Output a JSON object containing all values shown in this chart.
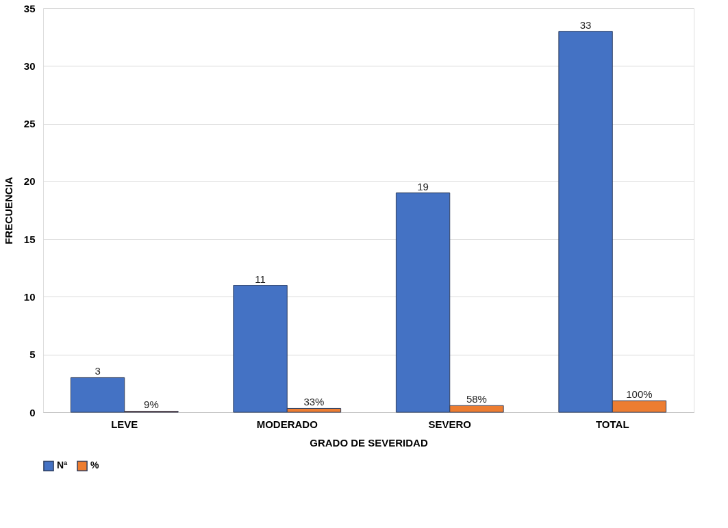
{
  "chart_data": {
    "type": "bar",
    "xlabel": "GRADO DE SEVERIDAD",
    "ylabel": "FRECUENCIA",
    "categories": [
      "LEVE",
      "MODERADO",
      "SEVERO",
      "TOTAL"
    ],
    "series": [
      {
        "name": "Nª",
        "color": "#4472c4",
        "values": [
          3,
          11,
          19,
          33
        ],
        "value_labels": [
          "3",
          "11",
          "19",
          "33"
        ]
      },
      {
        "name": "%",
        "color": "#ed7d31",
        "values": [
          0.09,
          0.33,
          0.58,
          1.0
        ],
        "value_labels": [
          "9%",
          "33%",
          "58%",
          "100%"
        ]
      }
    ],
    "ylim": [
      0,
      35
    ],
    "yticks": [
      0,
      5,
      10,
      15,
      20,
      25,
      30,
      35
    ],
    "grid": "y",
    "legend": "bottom"
  }
}
